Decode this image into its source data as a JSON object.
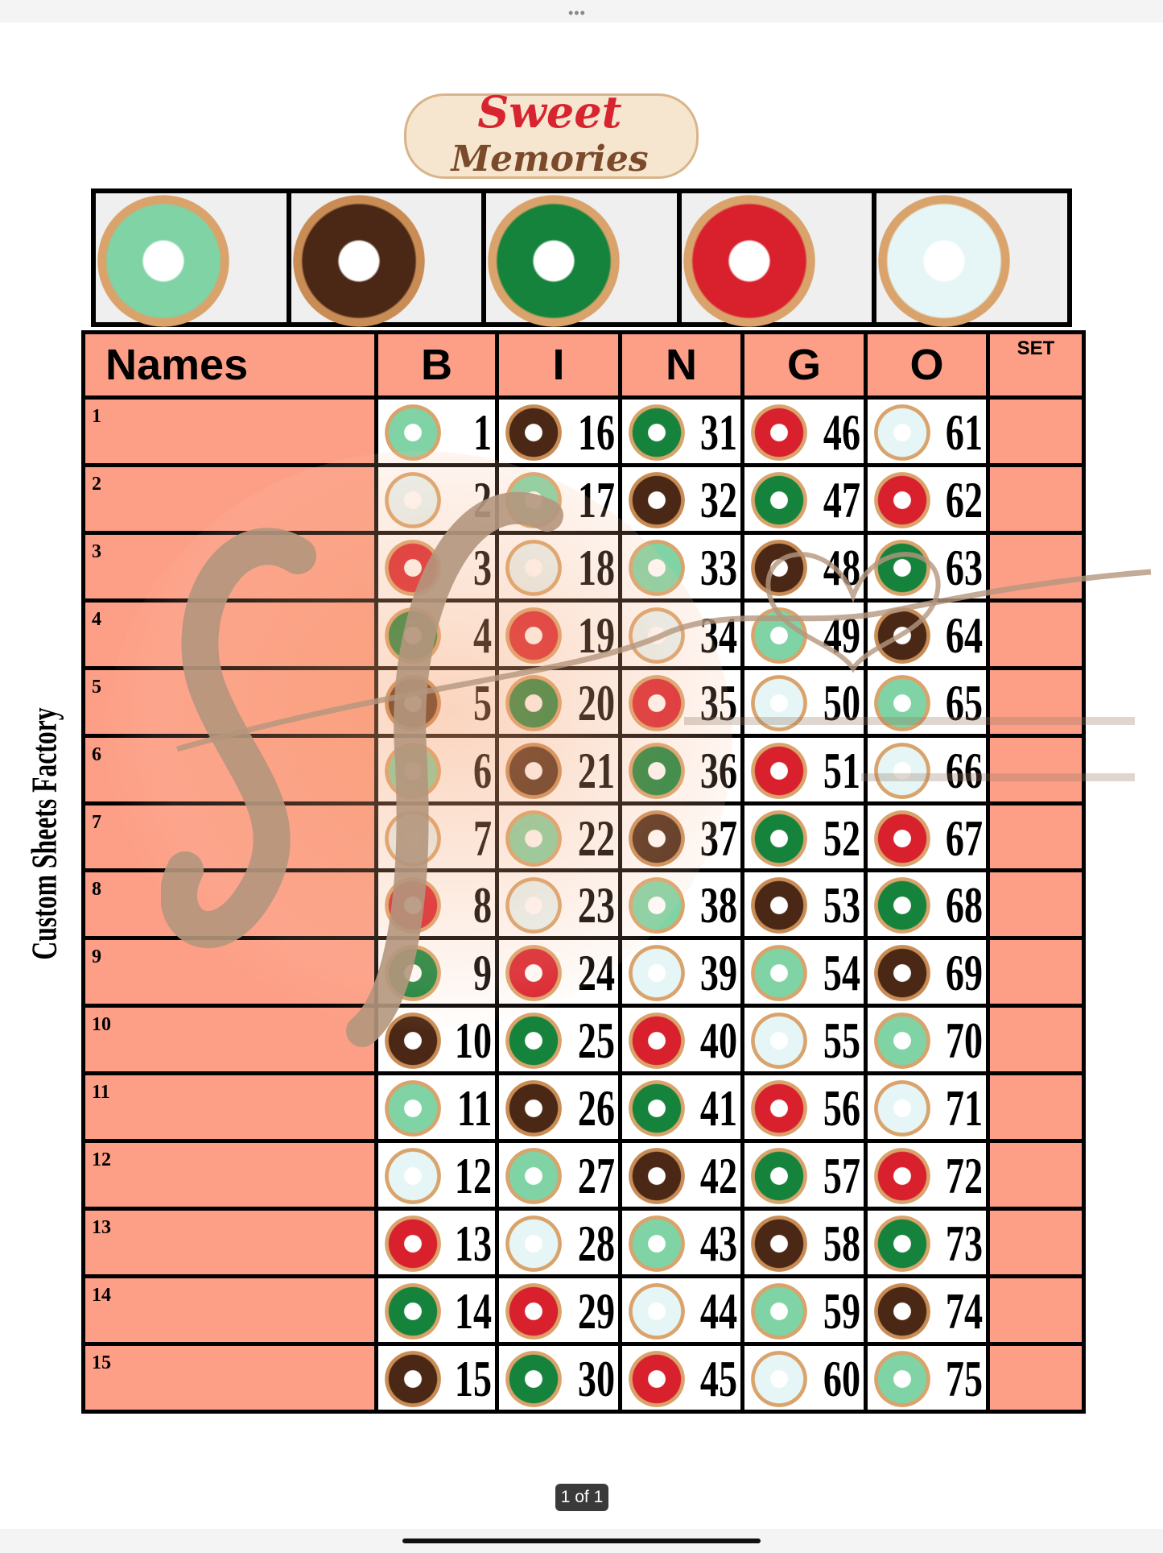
{
  "viewer": {
    "menu_icon": "more-dots-icon",
    "page_indicator": "1 of 1"
  },
  "logo": {
    "line1": "Sweet",
    "line2": "Memories"
  },
  "side_label": "Custom Sheets Factory",
  "watermark": {
    "monogram": "sf",
    "line1": "CUSTOM SHEETS",
    "line2": "FACTORY"
  },
  "donut_colors": {
    "mint": {
      "icing": "#7fd3a4",
      "dough": "#d9a36b"
    },
    "white": {
      "icing": "#e6f6f6",
      "dough": "#d9a36b"
    },
    "red": {
      "icing": "#d9202d",
      "dough": "#d9a36b"
    },
    "darkgreen": {
      "icing": "#16833c",
      "dough": "#d9a36b"
    },
    "brown": {
      "icing": "#4a2815",
      "dough": "#c98c55"
    }
  },
  "header_donuts": [
    "mint",
    "brown",
    "darkgreen",
    "red",
    "white"
  ],
  "table": {
    "names_header": "Names",
    "letters": [
      "B",
      "I",
      "N",
      "G",
      "O"
    ],
    "set_header": "SET",
    "donut_cycle": [
      "mint",
      "white",
      "red",
      "darkgreen",
      "brown"
    ],
    "row_labels": [
      "1",
      "2",
      "3",
      "4",
      "5",
      "6",
      "7",
      "8",
      "9",
      "10",
      "11",
      "12",
      "13",
      "14",
      "15"
    ],
    "columns": [
      [
        "1",
        "2",
        "3",
        "4",
        "5",
        "6",
        "7",
        "8",
        "9",
        "10",
        "11",
        "12",
        "13",
        "14",
        "15"
      ],
      [
        "16",
        "17",
        "18",
        "19",
        "20",
        "21",
        "22",
        "23",
        "24",
        "25",
        "26",
        "27",
        "28",
        "29",
        "30"
      ],
      [
        "31",
        "32",
        "33",
        "34",
        "35",
        "36",
        "37",
        "38",
        "39",
        "40",
        "41",
        "42",
        "43",
        "44",
        "45"
      ],
      [
        "46",
        "47",
        "48",
        "49",
        "50",
        "51",
        "52",
        "53",
        "54",
        "55",
        "56",
        "57",
        "58",
        "59",
        "60"
      ],
      [
        "61",
        "62",
        "63",
        "64",
        "65",
        "66",
        "67",
        "68",
        "69",
        "70",
        "71",
        "72",
        "73",
        "74",
        "75"
      ]
    ]
  }
}
